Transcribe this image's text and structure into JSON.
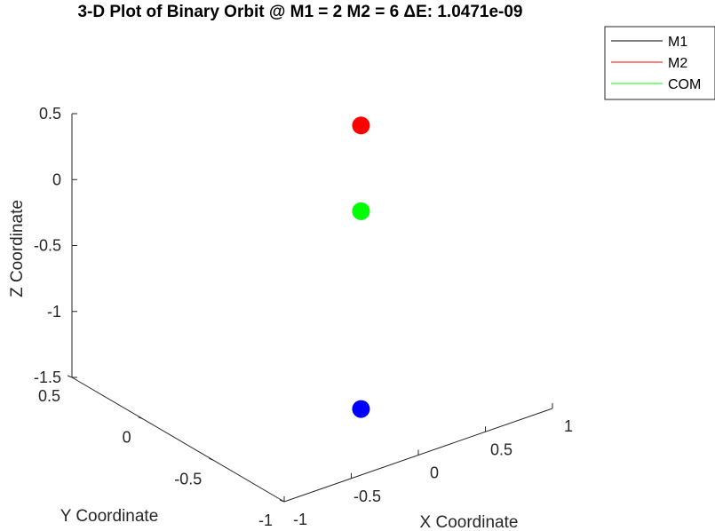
{
  "chart_data": {
    "type": "scatter",
    "title": "3-D Plot of Binary Orbit @ M1 = 2 M2 = 6 ΔE: 1.0471e-09",
    "xlabel": "X Coordinate",
    "ylabel": "Y Coordinate",
    "zlabel": "Z Coordinate",
    "xlim": [
      -1,
      1
    ],
    "ylim": [
      -1,
      0.5
    ],
    "zlim": [
      -1.5,
      0.5
    ],
    "xticks": [
      "-1",
      "-0.5",
      "0",
      "0.5",
      "1"
    ],
    "yticks": [
      "-1",
      "-0.5",
      "0",
      "0.5"
    ],
    "zticks": [
      "-1.5",
      "-1",
      "-0.5",
      "0",
      "0.5"
    ],
    "grid": false,
    "legend_position": "top-right",
    "legend": [
      {
        "label": "M1",
        "color": "#000000"
      },
      {
        "label": "M2",
        "color": "#ff0000"
      },
      {
        "label": "COM",
        "color": "#00ff00"
      }
    ],
    "points": [
      {
        "x": 0.1,
        "y": -0.5,
        "z": 0.65,
        "color": "#ff0000"
      },
      {
        "x": 0.1,
        "y": -0.5,
        "z": 0.0,
        "color": "#00ff00"
      },
      {
        "x": 0.1,
        "y": -0.5,
        "z": -1.5,
        "color": "#0000ff"
      }
    ]
  }
}
